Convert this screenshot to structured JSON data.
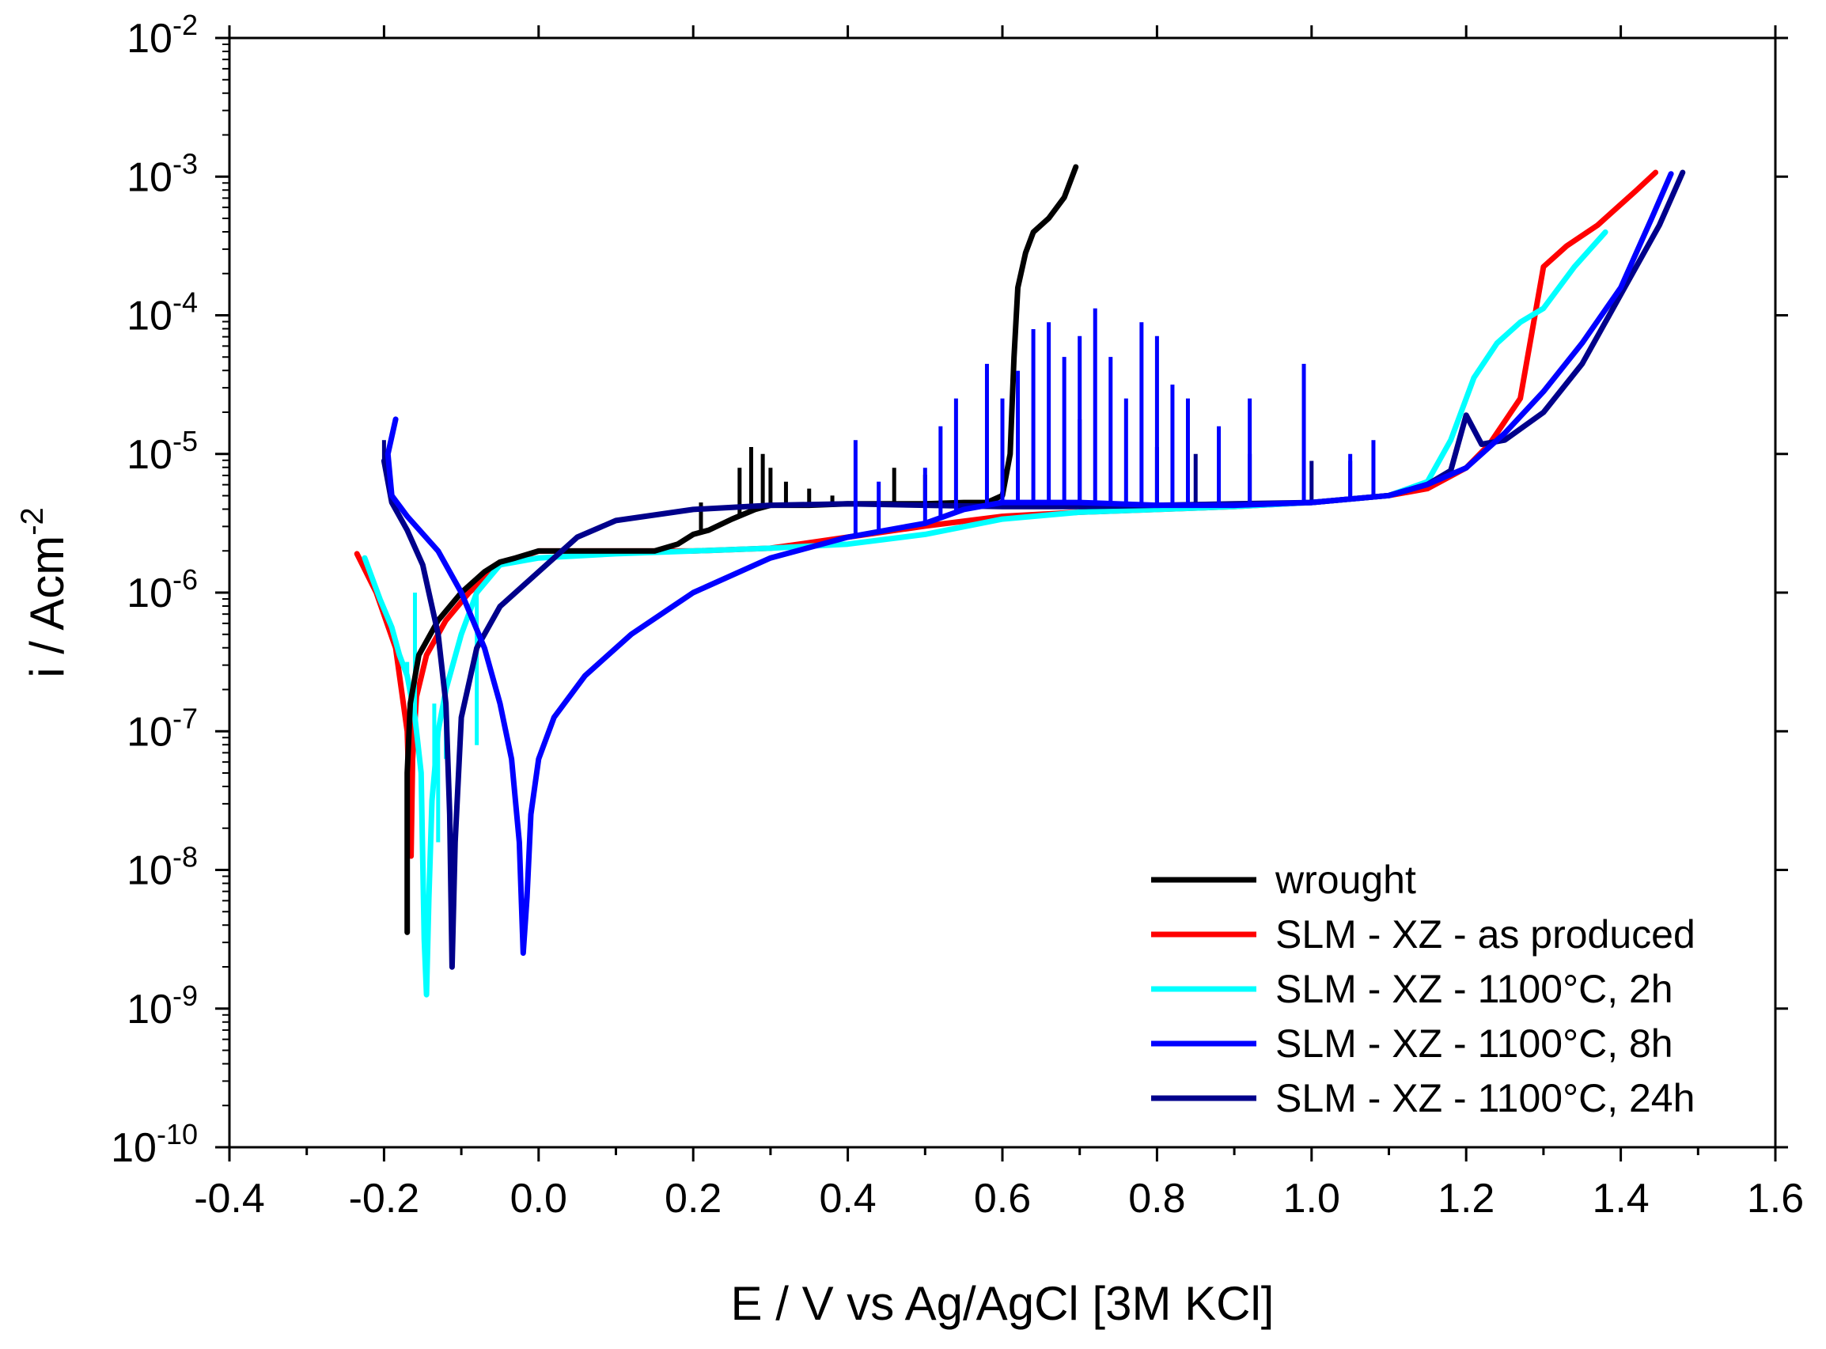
{
  "chart_data": {
    "type": "line",
    "title": "",
    "xlabel": "E / V vs Ag/AgCl [3M KCl]",
    "ylabel_base": "i / Acm",
    "ylabel_exp": "-2",
    "xlim": [
      -0.4,
      1.6
    ],
    "ylim_log10": [
      -10,
      -2
    ],
    "y_scale": "log",
    "x_ticks": [
      {
        "v": -0.4,
        "label": "-0.4"
      },
      {
        "v": -0.2,
        "label": "-0.2"
      },
      {
        "v": 0.0,
        "label": "0.0"
      },
      {
        "v": 0.2,
        "label": "0.2"
      },
      {
        "v": 0.4,
        "label": "0.4"
      },
      {
        "v": 0.6,
        "label": "0.6"
      },
      {
        "v": 0.8,
        "label": "0.8"
      },
      {
        "v": 1.0,
        "label": "1.0"
      },
      {
        "v": 1.2,
        "label": "1.2"
      },
      {
        "v": 1.4,
        "label": "1.4"
      },
      {
        "v": 1.6,
        "label": "1.6"
      }
    ],
    "y_ticks": [
      {
        "exp": -2,
        "base": "10",
        "sup": "-2"
      },
      {
        "exp": -3,
        "base": "10",
        "sup": "-3"
      },
      {
        "exp": -4,
        "base": "10",
        "sup": "-4"
      },
      {
        "exp": -5,
        "base": "10",
        "sup": "-5"
      },
      {
        "exp": -6,
        "base": "10",
        "sup": "-6"
      },
      {
        "exp": -7,
        "base": "10",
        "sup": "-7"
      },
      {
        "exp": -8,
        "base": "10",
        "sup": "-8"
      },
      {
        "exp": -9,
        "base": "10",
        "sup": "-9"
      },
      {
        "exp": -10,
        "base": "10",
        "sup": "-10"
      }
    ],
    "legend_position": "bottom-right",
    "series": [
      {
        "name": "wrought",
        "color": "#000000",
        "points": [
          [
            -0.17,
            -8.45
          ],
          [
            -0.17,
            -7.3
          ],
          [
            -0.166,
            -6.8
          ],
          [
            -0.155,
            -6.45
          ],
          [
            -0.13,
            -6.2
          ],
          [
            -0.1,
            -6.0
          ],
          [
            -0.07,
            -5.85
          ],
          [
            -0.05,
            -5.78
          ],
          [
            -0.03,
            -5.75
          ],
          [
            0.0,
            -5.7
          ],
          [
            0.05,
            -5.7
          ],
          [
            0.1,
            -5.7
          ],
          [
            0.15,
            -5.7
          ],
          [
            0.18,
            -5.65
          ],
          [
            0.2,
            -5.58
          ],
          [
            0.22,
            -5.55
          ],
          [
            0.25,
            -5.47
          ],
          [
            0.28,
            -5.4
          ],
          [
            0.3,
            -5.37
          ],
          [
            0.35,
            -5.37
          ],
          [
            0.4,
            -5.36
          ],
          [
            0.45,
            -5.36
          ],
          [
            0.5,
            -5.36
          ],
          [
            0.55,
            -5.35
          ],
          [
            0.58,
            -5.35
          ],
          [
            0.6,
            -5.3
          ],
          [
            0.61,
            -5.0
          ],
          [
            0.615,
            -4.3
          ],
          [
            0.62,
            -3.8
          ],
          [
            0.63,
            -3.55
          ],
          [
            0.64,
            -3.4
          ],
          [
            0.66,
            -3.3
          ],
          [
            0.68,
            -3.15
          ],
          [
            0.695,
            -2.93
          ]
        ],
        "spikes": [
          [
            0.21,
            -5.35
          ],
          [
            0.26,
            -5.1
          ],
          [
            0.275,
            -4.95
          ],
          [
            0.29,
            -5.0
          ],
          [
            0.3,
            -5.1
          ],
          [
            0.32,
            -5.2
          ],
          [
            0.35,
            -5.25
          ],
          [
            0.38,
            -5.3
          ],
          [
            0.46,
            -5.1
          ],
          [
            0.5,
            -5.15
          ]
        ]
      },
      {
        "name": "SLM - XZ - as produced",
        "color": "#ff0000",
        "points": [
          [
            -0.235,
            -5.72
          ],
          [
            -0.21,
            -6.0
          ],
          [
            -0.185,
            -6.4
          ],
          [
            -0.17,
            -7.0
          ],
          [
            -0.165,
            -7.9
          ],
          [
            -0.163,
            -7.2
          ],
          [
            -0.158,
            -6.75
          ],
          [
            -0.145,
            -6.45
          ],
          [
            -0.12,
            -6.2
          ],
          [
            -0.09,
            -6.0
          ],
          [
            -0.05,
            -5.8
          ],
          [
            0.0,
            -5.7
          ],
          [
            0.05,
            -5.7
          ],
          [
            0.2,
            -5.7
          ],
          [
            0.3,
            -5.68
          ],
          [
            0.4,
            -5.6
          ],
          [
            0.5,
            -5.52
          ],
          [
            0.6,
            -5.45
          ],
          [
            0.7,
            -5.42
          ],
          [
            0.8,
            -5.4
          ],
          [
            0.9,
            -5.38
          ],
          [
            1.0,
            -5.35
          ],
          [
            1.1,
            -5.3
          ],
          [
            1.15,
            -5.25
          ],
          [
            1.2,
            -5.1
          ],
          [
            1.23,
            -4.93
          ],
          [
            1.27,
            -4.6
          ],
          [
            1.3,
            -3.65
          ],
          [
            1.33,
            -3.5
          ],
          [
            1.37,
            -3.35
          ],
          [
            1.42,
            -3.1
          ],
          [
            1.445,
            -2.97
          ]
        ]
      },
      {
        "name": "SLM - XZ - 1100°C, 2h",
        "color": "#00ffff",
        "points": [
          [
            -0.225,
            -5.75
          ],
          [
            -0.205,
            -6.05
          ],
          [
            -0.19,
            -6.25
          ],
          [
            -0.18,
            -6.45
          ],
          [
            -0.17,
            -6.6
          ],
          [
            -0.16,
            -6.9
          ],
          [
            -0.152,
            -7.3
          ],
          [
            -0.148,
            -8.5
          ],
          [
            -0.145,
            -8.9
          ],
          [
            -0.142,
            -8.2
          ],
          [
            -0.138,
            -7.5
          ],
          [
            -0.13,
            -7.0
          ],
          [
            -0.12,
            -6.7
          ],
          [
            -0.1,
            -6.3
          ],
          [
            -0.08,
            -6.0
          ],
          [
            -0.05,
            -5.8
          ],
          [
            0.0,
            -5.75
          ],
          [
            0.1,
            -5.72
          ],
          [
            0.2,
            -5.7
          ],
          [
            0.3,
            -5.68
          ],
          [
            0.4,
            -5.65
          ],
          [
            0.5,
            -5.58
          ],
          [
            0.6,
            -5.47
          ],
          [
            0.7,
            -5.42
          ],
          [
            0.8,
            -5.4
          ],
          [
            0.9,
            -5.38
          ],
          [
            1.0,
            -5.35
          ],
          [
            1.1,
            -5.3
          ],
          [
            1.15,
            -5.2
          ],
          [
            1.18,
            -4.9
          ],
          [
            1.21,
            -4.45
          ],
          [
            1.24,
            -4.2
          ],
          [
            1.27,
            -4.05
          ],
          [
            1.3,
            -3.95
          ],
          [
            1.34,
            -3.65
          ],
          [
            1.38,
            -3.4
          ]
        ],
        "spikes": [
          [
            -0.17,
            -6.5
          ],
          [
            -0.16,
            -6.0
          ],
          [
            -0.135,
            -6.8
          ],
          [
            -0.13,
            -7.8
          ],
          [
            -0.12,
            -7.2
          ],
          [
            -0.08,
            -7.1
          ]
        ]
      },
      {
        "name": "SLM - XZ - 1100°C, 8h",
        "color": "#0000ff",
        "points": [
          [
            -0.185,
            -4.75
          ],
          [
            -0.195,
            -5.0
          ],
          [
            -0.19,
            -5.3
          ],
          [
            -0.17,
            -5.45
          ],
          [
            -0.13,
            -5.7
          ],
          [
            -0.1,
            -6.0
          ],
          [
            -0.07,
            -6.4
          ],
          [
            -0.05,
            -6.8
          ],
          [
            -0.035,
            -7.2
          ],
          [
            -0.025,
            -7.8
          ],
          [
            -0.02,
            -8.6
          ],
          [
            -0.015,
            -8.2
          ],
          [
            -0.01,
            -7.6
          ],
          [
            0.0,
            -7.2
          ],
          [
            0.02,
            -6.9
          ],
          [
            0.06,
            -6.6
          ],
          [
            0.12,
            -6.3
          ],
          [
            0.2,
            -6.0
          ],
          [
            0.3,
            -5.75
          ],
          [
            0.4,
            -5.6
          ],
          [
            0.5,
            -5.5
          ],
          [
            0.55,
            -5.4
          ],
          [
            0.6,
            -5.35
          ],
          [
            0.7,
            -5.35
          ],
          [
            0.8,
            -5.37
          ],
          [
            0.9,
            -5.37
          ],
          [
            1.0,
            -5.35
          ],
          [
            1.1,
            -5.3
          ],
          [
            1.15,
            -5.22
          ],
          [
            1.2,
            -5.1
          ],
          [
            1.25,
            -4.85
          ],
          [
            1.3,
            -4.55
          ],
          [
            1.35,
            -4.2
          ],
          [
            1.4,
            -3.8
          ],
          [
            1.44,
            -3.3
          ],
          [
            1.465,
            -2.98
          ]
        ],
        "spikes": [
          [
            0.41,
            -4.9
          ],
          [
            0.44,
            -5.2
          ],
          [
            0.5,
            -5.1
          ],
          [
            0.52,
            -4.8
          ],
          [
            0.54,
            -4.6
          ],
          [
            0.58,
            -4.35
          ],
          [
            0.6,
            -4.6
          ],
          [
            0.62,
            -4.4
          ],
          [
            0.64,
            -4.1
          ],
          [
            0.66,
            -4.05
          ],
          [
            0.68,
            -4.3
          ],
          [
            0.7,
            -4.15
          ],
          [
            0.72,
            -3.95
          ],
          [
            0.74,
            -4.3
          ],
          [
            0.76,
            -4.6
          ],
          [
            0.78,
            -4.05
          ],
          [
            0.8,
            -4.15
          ],
          [
            0.82,
            -4.5
          ],
          [
            0.84,
            -4.6
          ],
          [
            0.88,
            -4.8
          ],
          [
            0.92,
            -4.6
          ],
          [
            0.99,
            -4.35
          ],
          [
            1.05,
            -5.0
          ],
          [
            1.08,
            -4.9
          ]
        ]
      },
      {
        "name": "SLM - XZ - 1100°C, 24h",
        "color": "#00008b",
        "points": [
          [
            -0.2,
            -5.05
          ],
          [
            -0.19,
            -5.35
          ],
          [
            -0.17,
            -5.55
          ],
          [
            -0.15,
            -5.8
          ],
          [
            -0.13,
            -6.3
          ],
          [
            -0.12,
            -6.8
          ],
          [
            -0.115,
            -7.6
          ],
          [
            -0.112,
            -8.7
          ],
          [
            -0.108,
            -7.8
          ],
          [
            -0.1,
            -6.9
          ],
          [
            -0.08,
            -6.4
          ],
          [
            -0.05,
            -6.1
          ],
          [
            0.0,
            -5.85
          ],
          [
            0.05,
            -5.6
          ],
          [
            0.1,
            -5.48
          ],
          [
            0.2,
            -5.4
          ],
          [
            0.3,
            -5.37
          ],
          [
            0.4,
            -5.36
          ],
          [
            0.5,
            -5.37
          ],
          [
            0.6,
            -5.38
          ],
          [
            0.7,
            -5.38
          ],
          [
            0.8,
            -5.37
          ],
          [
            0.9,
            -5.36
          ],
          [
            1.0,
            -5.35
          ],
          [
            1.1,
            -5.3
          ],
          [
            1.15,
            -5.22
          ],
          [
            1.18,
            -5.12
          ],
          [
            1.2,
            -4.72
          ],
          [
            1.22,
            -4.93
          ],
          [
            1.25,
            -4.9
          ],
          [
            1.3,
            -4.7
          ],
          [
            1.35,
            -4.35
          ],
          [
            1.4,
            -3.85
          ],
          [
            1.45,
            -3.35
          ],
          [
            1.48,
            -2.97
          ]
        ],
        "spikes": [
          [
            -0.2,
            -4.9
          ],
          [
            0.6,
            -4.75
          ],
          [
            0.7,
            -4.75
          ],
          [
            0.8,
            -4.95
          ],
          [
            0.85,
            -5.0
          ],
          [
            0.92,
            -5.0
          ],
          [
            1.0,
            -5.05
          ],
          [
            1.05,
            -5.05
          ]
        ]
      }
    ]
  }
}
